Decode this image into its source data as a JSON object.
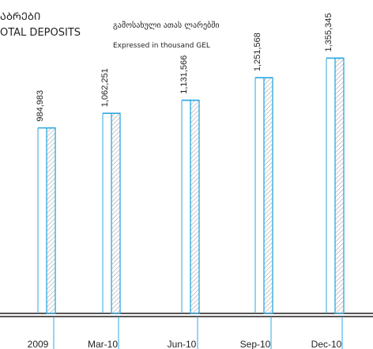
{
  "header": {
    "title_ka": "ᲐᲑᲠᲔᲑᲘ",
    "title_en": "OTAL DEPOSITS",
    "subtitle_ka": "გამოსახული ათას ლარებში",
    "subtitle_en": "Expressed in thousand GEL"
  },
  "chart_data": {
    "type": "bar",
    "title": "",
    "xlabel": "",
    "ylabel": "",
    "categories": [
      "2009",
      "Mar-10",
      "Jun-10",
      "Sep-10",
      "Dec-10"
    ],
    "values": [
      984983,
      1062251,
      1131566,
      1251568,
      1355345
    ],
    "value_labels": [
      "984,983",
      "1,062,251",
      "1,131,566",
      "1,251,568",
      "1,355,345"
    ],
    "ylim": [
      0,
      1370000
    ],
    "grid": false,
    "colors": {
      "bar_outline": "#2aa8e0",
      "hatch": "#9fa3a6",
      "axis": "#231f20"
    }
  }
}
